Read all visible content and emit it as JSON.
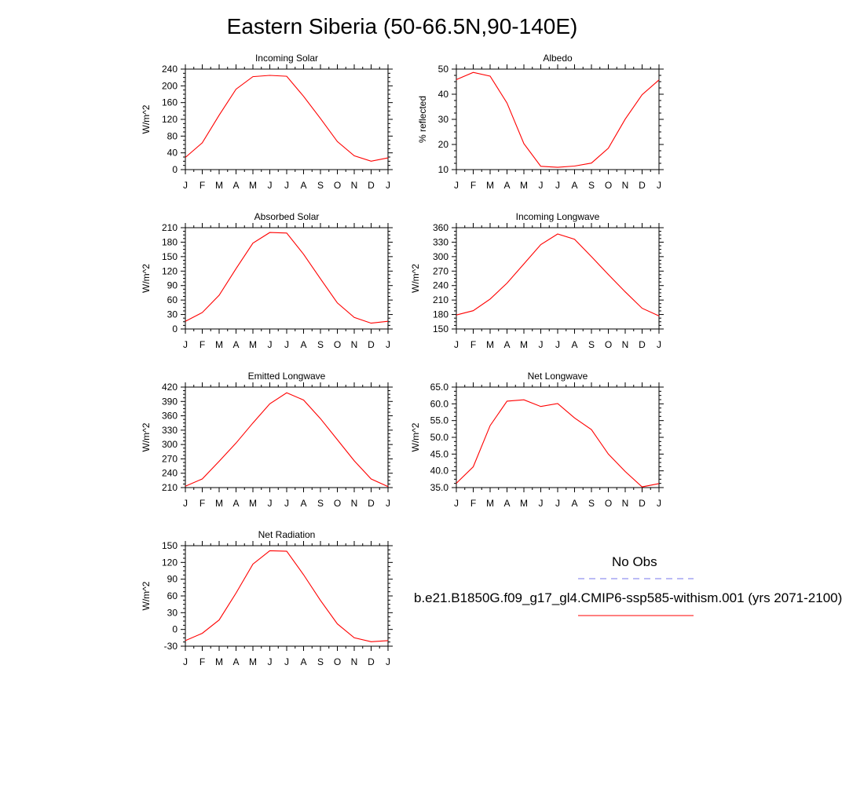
{
  "figure": {
    "title": "Eastern Siberia (50-66.5N,90-140E)",
    "legend": {
      "obs_label": "No Obs",
      "model_label": "b.e21.B1850G.f09_g17_gl4.CMIP6-ssp585-withism.001 (yrs 2071-2100)",
      "obs_color": "#7777ee",
      "model_color": "#ff0000"
    }
  },
  "chart_data": [
    {
      "type": "line",
      "title": "Incoming Solar",
      "ylabel": "W/m^2",
      "xlabel": "",
      "categories": [
        "J",
        "F",
        "M",
        "A",
        "M",
        "J",
        "J",
        "A",
        "S",
        "O",
        "N",
        "D",
        "J"
      ],
      "ylim": [
        0,
        240
      ],
      "yticks": [
        "0",
        "40",
        "80",
        "120",
        "160",
        "200",
        "240"
      ],
      "series": [
        {
          "values": [
            29,
            64,
            130,
            192,
            222,
            225,
            223,
            175,
            122,
            67,
            33,
            20,
            28
          ],
          "color": "#ff0000"
        }
      ]
    },
    {
      "type": "line",
      "title": "Albedo",
      "ylabel": "% reflected",
      "xlabel": "",
      "categories": [
        "J",
        "F",
        "M",
        "A",
        "M",
        "J",
        "J",
        "A",
        "S",
        "O",
        "N",
        "D",
        "J"
      ],
      "ylim": [
        10,
        50
      ],
      "yticks": [
        "10",
        "20",
        "30",
        "40",
        "50"
      ],
      "series": [
        {
          "values": [
            45.8,
            48.7,
            47.2,
            36.5,
            20.3,
            11.3,
            10.9,
            11.4,
            12.6,
            18.5,
            30.1,
            39.8,
            45.7
          ],
          "color": "#ff0000"
        }
      ]
    },
    {
      "type": "line",
      "title": "Absorbed Solar",
      "ylabel": "W/m^2",
      "xlabel": "",
      "categories": [
        "J",
        "F",
        "M",
        "A",
        "M",
        "J",
        "J",
        "A",
        "S",
        "O",
        "N",
        "D",
        "J"
      ],
      "ylim": [
        0,
        210
      ],
      "yticks": [
        "0",
        "30",
        "60",
        "90",
        "120",
        "150",
        "180",
        "210"
      ],
      "series": [
        {
          "values": [
            16,
            34,
            70,
            125,
            178,
            200,
            199,
            155,
            104,
            54,
            24,
            12,
            16
          ],
          "color": "#ff0000"
        }
      ]
    },
    {
      "type": "line",
      "title": "Incoming Longwave",
      "ylabel": "W/m^2",
      "xlabel": "",
      "categories": [
        "J",
        "F",
        "M",
        "A",
        "M",
        "J",
        "J",
        "A",
        "S",
        "O",
        "N",
        "D",
        "J"
      ],
      "ylim": [
        150,
        360
      ],
      "yticks": [
        "150",
        "180",
        "210",
        "240",
        "270",
        "300",
        "330",
        "360"
      ],
      "series": [
        {
          "values": [
            179,
            188,
            212,
            245,
            285,
            325,
            347,
            336,
            300,
            263,
            227,
            193,
            177
          ],
          "color": "#ff0000"
        }
      ]
    },
    {
      "type": "line",
      "title": "Emitted Longwave",
      "ylabel": "W/m^2",
      "xlabel": "",
      "categories": [
        "J",
        "F",
        "M",
        "A",
        "M",
        "J",
        "J",
        "A",
        "S",
        "O",
        "N",
        "D",
        "J"
      ],
      "ylim": [
        210,
        420
      ],
      "yticks": [
        "210",
        "240",
        "270",
        "300",
        "330",
        "360",
        "390",
        "420"
      ],
      "series": [
        {
          "values": [
            213,
            228,
            265,
            303,
            345,
            385,
            408,
            393,
            354,
            310,
            266,
            228,
            212
          ],
          "color": "#ff0000"
        }
      ]
    },
    {
      "type": "line",
      "title": "Net Longwave",
      "ylabel": "W/m^2",
      "xlabel": "",
      "categories": [
        "J",
        "F",
        "M",
        "A",
        "M",
        "J",
        "J",
        "A",
        "S",
        "O",
        "N",
        "D",
        "J"
      ],
      "ylim": [
        35,
        65
      ],
      "yticks": [
        "35.0",
        "40.0",
        "45.0",
        "50.0",
        "55.0",
        "60.0",
        "65.0"
      ],
      "series": [
        {
          "values": [
            36.3,
            41.2,
            53.5,
            60.8,
            61.2,
            59.2,
            60.1,
            55.8,
            52.3,
            45.0,
            39.8,
            35.2,
            36.2
          ],
          "color": "#ff0000"
        }
      ]
    },
    {
      "type": "line",
      "title": "Net Radiation",
      "ylabel": "W/m^2",
      "xlabel": "",
      "categories": [
        "J",
        "F",
        "M",
        "A",
        "M",
        "J",
        "J",
        "A",
        "S",
        "O",
        "N",
        "D",
        "J"
      ],
      "ylim": [
        -30,
        150
      ],
      "yticks": [
        "-30",
        "0",
        "30",
        "60",
        "90",
        "120",
        "150"
      ],
      "series": [
        {
          "values": [
            -20,
            -7,
            17,
            65,
            117,
            141,
            140,
            98,
            52,
            10,
            -15,
            -22,
            -20
          ],
          "color": "#ff0000"
        }
      ]
    }
  ]
}
